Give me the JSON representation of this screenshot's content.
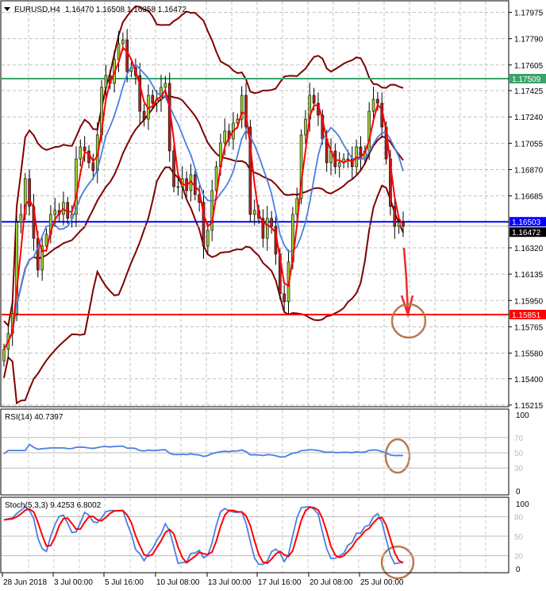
{
  "header": {
    "symbol": "EURUSD,H4",
    "ohlc": "1.16470 1.16508 1.16358 1.16472"
  },
  "rsi_label": "RSI(14) 40.7397",
  "stoch_label": "Stoch(5,3,3) 9.4253 6.8002",
  "colors": {
    "bull": "#9acd32",
    "bear": "#b22222",
    "band": "#800000",
    "fast_ma": "#ff0000",
    "slow_ma": "#4a7fe0",
    "green_level": "#3aa36a",
    "blue_level": "#0000ff",
    "red_level": "#ff0000",
    "annotation": "#b87a50"
  },
  "chart_data": {
    "type": "candlestick",
    "title": "EURUSD,H4",
    "price_ticks": [
      "1.17975",
      "1.17790",
      "1.17605",
      "1.17425",
      "1.17240",
      "1.17055",
      "1.16870",
      "1.16685",
      "1.16320",
      "1.16135",
      "1.15950",
      "1.15765",
      "1.15580",
      "1.15400",
      "1.15215"
    ],
    "ylim": [
      1.15215,
      1.1806
    ],
    "x_ticks": [
      "28 Jun 2018",
      "3 Jul 00:00",
      "5 Jul 16:00",
      "10 Jul 08:00",
      "13 Jul 00:00",
      "17 Jul 16:00",
      "20 Jul 08:00",
      "25 Jul 00:00"
    ],
    "closes": [
      1.15606,
      1.15718,
      1.15857,
      1.16499,
      1.16555,
      1.16806,
      1.16611,
      1.16387,
      1.16164,
      1.16332,
      1.16415,
      1.16555,
      1.16583,
      1.16555,
      1.16639,
      1.16527,
      1.16555,
      1.16945,
      1.17029,
      1.17001,
      1.16918,
      1.16862,
      1.17113,
      1.17448,
      1.17531,
      1.17476,
      1.17643,
      1.17755,
      1.17782,
      1.17559,
      1.17587,
      1.17531,
      1.1728,
      1.17224,
      1.17392,
      1.17336,
      1.17364,
      1.17448,
      1.17476,
      1.17001,
      1.1675,
      1.1675,
      1.16806,
      1.16722,
      1.16834,
      1.16694,
      1.16639,
      1.16332,
      1.16443,
      1.16722,
      1.1689,
      1.17057,
      1.17141,
      1.17085,
      1.17197,
      1.17224,
      1.17392,
      1.17169,
      1.16555,
      1.16583,
      1.16527,
      1.16387,
      1.16527,
      1.16471,
      1.16276,
      1.15997,
      1.15941,
      1.1622,
      1.16555,
      1.16666,
      1.17113,
      1.17224,
      1.17392,
      1.17336,
      1.17252,
      1.17085,
      1.16918,
      1.17001,
      1.1689,
      1.16918,
      1.16945,
      1.16945,
      1.1689,
      1.17029,
      1.16945,
      1.17001,
      1.1728,
      1.17364,
      1.17336,
      1.17169,
      1.16945,
      1.16611,
      1.16471,
      1.16499,
      1.16472
    ],
    "levels": [
      {
        "price": "1.17509",
        "color": "#3aa36a"
      },
      {
        "price": "1.16503",
        "color": "#0000ff"
      },
      {
        "price": "1.15851",
        "color": "#ff0000"
      }
    ],
    "current_price": "1.16472",
    "indicators": [
      "Bollinger Bands",
      "Moving Average (fast)",
      "Moving Average (slow)"
    ],
    "rsi": {
      "label": "RSI(14) 40.7397",
      "levels": [
        "100",
        "70",
        "50",
        "30",
        "0"
      ],
      "value": 40.7397
    },
    "stoch": {
      "label": "Stoch(5,3,3) 9.4253 6.8002",
      "levels": [
        "100",
        "80",
        "50",
        "20",
        "0"
      ],
      "main": 9.4253,
      "signal": 6.8002
    }
  }
}
